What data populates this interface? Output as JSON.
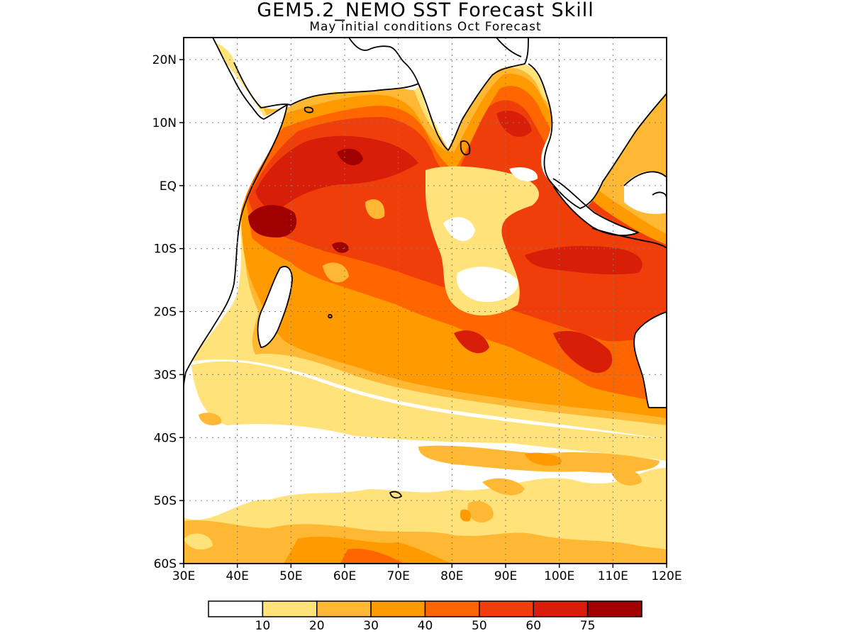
{
  "title": "GEM5.2_NEMO SST Forecast Skill",
  "subtitle": "May initial conditions  Oct Forecast",
  "map": {
    "lon_range": [
      30,
      120
    ],
    "lat_range": [
      -60,
      23.5
    ],
    "x_ticks": [
      {
        "value": 30,
        "label": "30E"
      },
      {
        "value": 40,
        "label": "40E"
      },
      {
        "value": 50,
        "label": "50E"
      },
      {
        "value": 60,
        "label": "60E"
      },
      {
        "value": 70,
        "label": "70E"
      },
      {
        "value": 80,
        "label": "80E"
      },
      {
        "value": 90,
        "label": "90E"
      },
      {
        "value": 100,
        "label": "100E"
      },
      {
        "value": 110,
        "label": "110E"
      },
      {
        "value": 120,
        "label": "120E"
      }
    ],
    "y_ticks": [
      {
        "value": 20,
        "label": "20N"
      },
      {
        "value": 10,
        "label": "10N"
      },
      {
        "value": 0,
        "label": "EQ"
      },
      {
        "value": -10,
        "label": "10S"
      },
      {
        "value": -20,
        "label": "20S"
      },
      {
        "value": -30,
        "label": "30S"
      },
      {
        "value": -40,
        "label": "40S"
      },
      {
        "value": -50,
        "label": "50S"
      },
      {
        "value": -60,
        "label": "60S"
      }
    ],
    "grid": true
  },
  "colorbar": {
    "colors": [
      "#ffffff",
      "#ffe37a",
      "#ffb833",
      "#ff9a00",
      "#ff6600",
      "#f03e0a",
      "#d81e08",
      "#a10000"
    ],
    "labels": [
      "10",
      "20",
      "30",
      "40",
      "50",
      "60",
      "75"
    ]
  }
}
